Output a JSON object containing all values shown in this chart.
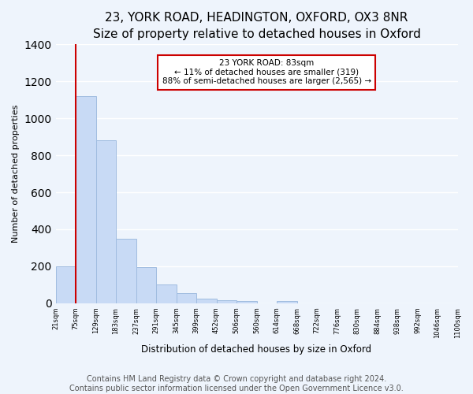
{
  "title": "23, YORK ROAD, HEADINGTON, OXFORD, OX3 8NR",
  "subtitle": "Size of property relative to detached houses in Oxford",
  "xlabel": "Distribution of detached houses by size in Oxford",
  "ylabel": "Number of detached properties",
  "bin_labels": [
    "21sqm",
    "75sqm",
    "129sqm",
    "183sqm",
    "237sqm",
    "291sqm",
    "345sqm",
    "399sqm",
    "452sqm",
    "506sqm",
    "560sqm",
    "614sqm",
    "668sqm",
    "722sqm",
    "776sqm",
    "830sqm",
    "884sqm",
    "938sqm",
    "992sqm",
    "1046sqm",
    "1100sqm"
  ],
  "bar_values": [
    200,
    1120,
    880,
    350,
    195,
    100,
    55,
    25,
    15,
    10,
    0,
    10,
    0,
    0,
    0,
    0,
    0,
    0,
    0,
    0
  ],
  "bar_color": "#c8daf5",
  "bar_edge_color": "#a0bce0",
  "marker_color": "#cc0000",
  "annotation_title": "23 YORK ROAD: 83sqm",
  "annotation_line1": "← 11% of detached houses are smaller (319)",
  "annotation_line2": "88% of semi-detached houses are larger (2,565) →",
  "annotation_box_color": "#ffffff",
  "annotation_box_edge": "#cc0000",
  "ylim": [
    0,
    1400
  ],
  "footer1": "Contains HM Land Registry data © Crown copyright and database right 2024.",
  "footer2": "Contains public sector information licensed under the Open Government Licence v3.0.",
  "background_color": "#eef4fc",
  "plot_bg_color": "#eef4fc",
  "grid_color": "#ffffff",
  "title_fontsize": 11,
  "subtitle_fontsize": 10,
  "footer_fontsize": 7
}
